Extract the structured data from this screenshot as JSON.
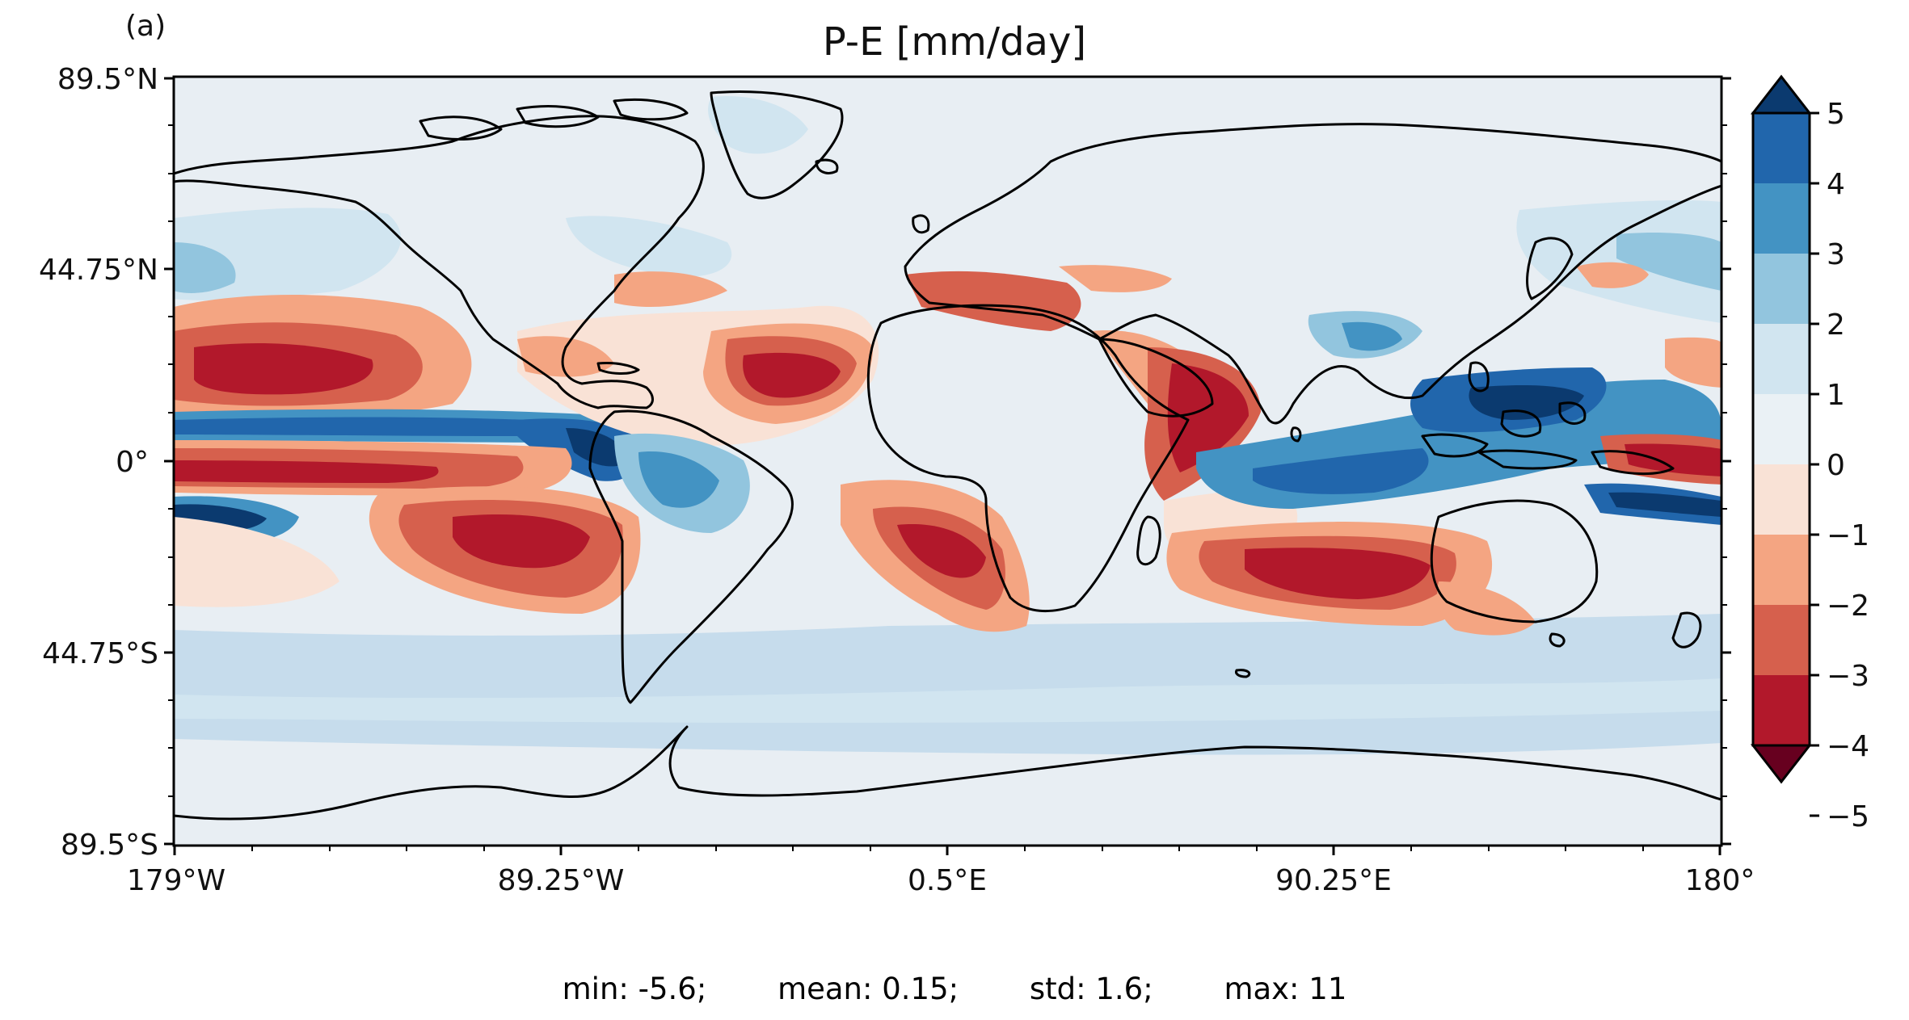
{
  "panel_label": "(a)",
  "title": "P-E [mm/day]",
  "y_ticks": [
    "89.5°N",
    "44.75°N",
    "0°",
    "44.75°S",
    "89.5°S"
  ],
  "x_ticks": [
    "179°W",
    "89.25°W",
    "0.5°E",
    "90.25°E",
    "180°"
  ],
  "colorbar": {
    "ticks": [
      "5",
      "4",
      "3",
      "2",
      "1",
      "0",
      "−1",
      "−2",
      "−3",
      "−4",
      "−5"
    ],
    "colors": [
      "#0b3a6f",
      "#2166ac",
      "#4393c3",
      "#92c5de",
      "#d1e5f0",
      "#eaf1f5",
      "#f9e2d6",
      "#f4a582",
      "#d6604d",
      "#b2182b",
      "#67001f"
    ],
    "extend": "both"
  },
  "stats": {
    "min": "min: -5.6;",
    "mean": "mean: 0.15;",
    "std": "std: 1.6;",
    "max": "max: 11"
  },
  "colors": {
    "ocean_base": "#e8eef3",
    "coast": "#000000"
  }
}
